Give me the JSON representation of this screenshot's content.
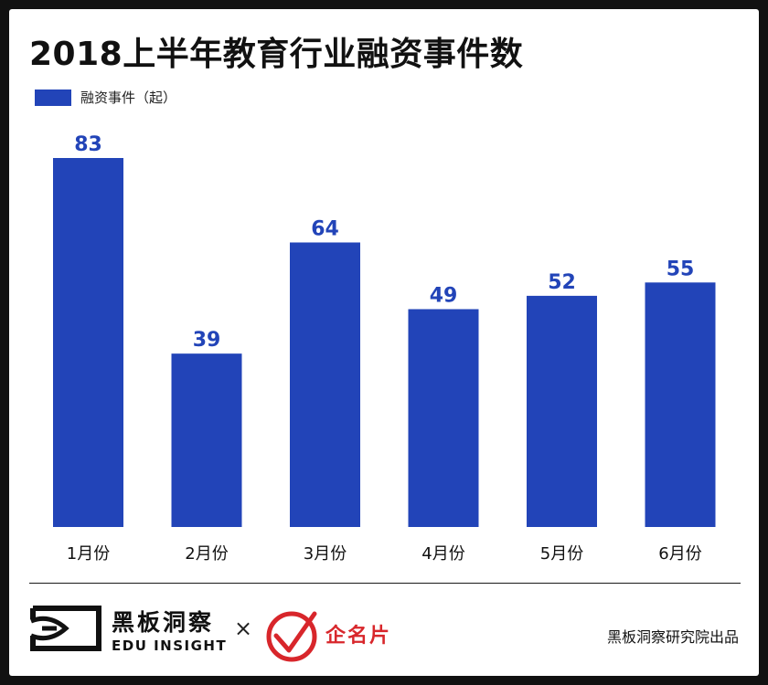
{
  "title": "2018上半年教育行业融资事件数",
  "legend": {
    "label": "融资事件（起）"
  },
  "colors": {
    "bar": "#2244b8",
    "value_label": "#2244b8",
    "text": "#111111",
    "partner": "#d8262b"
  },
  "chart_data": {
    "type": "bar",
    "title": "2018上半年教育行业融资事件数",
    "categories": [
      "1月份",
      "2月份",
      "3月份",
      "4月份",
      "5月份",
      "6月份"
    ],
    "series": [
      {
        "name": "融资事件（起）",
        "values": [
          83,
          39,
          64,
          49,
          52,
          55
        ]
      }
    ],
    "ylim": [
      0,
      83
    ],
    "grid": false,
    "data_labels": true,
    "legend_position": "top-left"
  },
  "footer": {
    "brand_cn": "黑板洞察",
    "brand_en": "EDU INSIGHT",
    "times": "×",
    "partner": "企名片",
    "credit": "黑板洞察研究院出品",
    "icons": [
      "eye-logo-icon",
      "checkmark-circle-icon"
    ]
  }
}
